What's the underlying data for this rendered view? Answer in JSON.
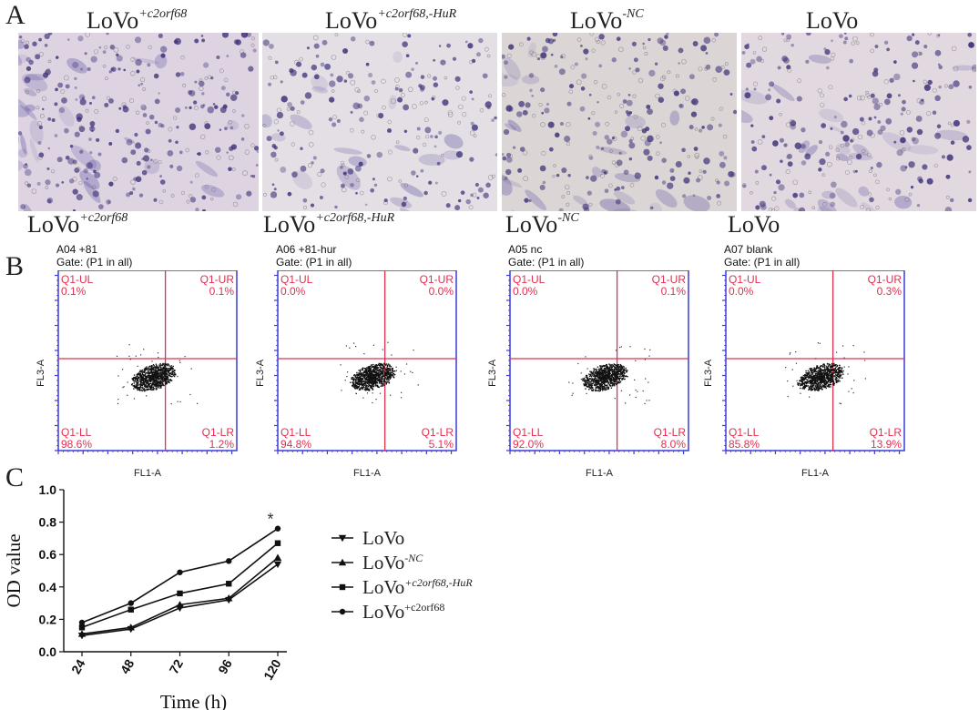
{
  "panel_a": {
    "letter": "A",
    "titles": [
      {
        "base": "LoVo",
        "sup": "+c2orf68"
      },
      {
        "base": "LoVo",
        "sup": "+c2orf68,-HuR"
      },
      {
        "base": "LoVo",
        "sup": "-NC"
      },
      {
        "base": "LoVo",
        "sup": ""
      }
    ],
    "stain_color": "#5a4fa0",
    "background_color": "#d9d3dc"
  },
  "panel_b": {
    "letter": "B",
    "row_labels": [
      {
        "base": "LoVo",
        "sup": "+c2orf68"
      },
      {
        "base": "LoVo",
        "sup": "+c2orf68,-HuR"
      },
      {
        "base": "LoVo",
        "sup": "-NC"
      },
      {
        "base": "LoVo",
        "sup": ""
      }
    ],
    "plots": [
      {
        "sample": "A04 +81",
        "gate": "Gate: (P1 in all)",
        "ul": "0.1%",
        "ur": "0.1%",
        "ll": "98.6%",
        "lr": "1.2%"
      },
      {
        "sample": "A06 +81-hur",
        "gate": "Gate: (P1 in all)",
        "ul": "0.0%",
        "ur": "0.0%",
        "ll": "94.8%",
        "lr": "5.1%"
      },
      {
        "sample": "A05 nc",
        "gate": "Gate: (P1 in all)",
        "ul": "0.0%",
        "ur": "0.1%",
        "ll": "92.0%",
        "lr": "8.0%"
      },
      {
        "sample": "A07 blank",
        "gate": "Gate: (P1 in all)",
        "ul": "0.0%",
        "ur": "0.3%",
        "ll": "85.8%",
        "lr": "13.9%"
      }
    ],
    "quadrant_names": {
      "ul": "Q1-UL",
      "ur": "Q1-UR",
      "ll": "Q1-LL",
      "lr": "Q1-LR"
    },
    "xaxis_label": "FL1-A",
    "yaxis_label": "FL3-A",
    "frame_color": "#3a3ad8",
    "gate_color": "#e03050",
    "quadrant_text_color": "#e03050"
  },
  "panel_c": {
    "letter": "C",
    "star": "*"
  },
  "chart_data": {
    "type": "line",
    "x": [
      24,
      48,
      72,
      96,
      120
    ],
    "categories": [
      "24",
      "48",
      "72",
      "96",
      "120"
    ],
    "xlabel": "Time (h)",
    "ylabel": "OD value",
    "ylim": [
      0,
      1.0
    ],
    "yticks": [
      "0.0",
      "0.2",
      "0.4",
      "0.6",
      "0.8",
      "1.0"
    ],
    "series": [
      {
        "name": "LoVo",
        "sup": "",
        "marker": "triangle-down",
        "values": [
          0.1,
          0.14,
          0.27,
          0.32,
          0.54
        ]
      },
      {
        "name": "LoVo",
        "sup": "-NC",
        "marker": "triangle-up",
        "values": [
          0.11,
          0.15,
          0.29,
          0.33,
          0.58
        ]
      },
      {
        "name": "LoVo",
        "sup": "+c2orf68,-HuR",
        "marker": "square",
        "values": [
          0.15,
          0.26,
          0.36,
          0.42,
          0.67
        ]
      },
      {
        "name": "LoVo",
        "sup": "+c2orf68",
        "marker": "circle",
        "values": [
          0.18,
          0.3,
          0.49,
          0.56,
          0.76
        ]
      }
    ],
    "annotations": [
      "*"
    ],
    "grid": false,
    "legend_position": "right"
  }
}
